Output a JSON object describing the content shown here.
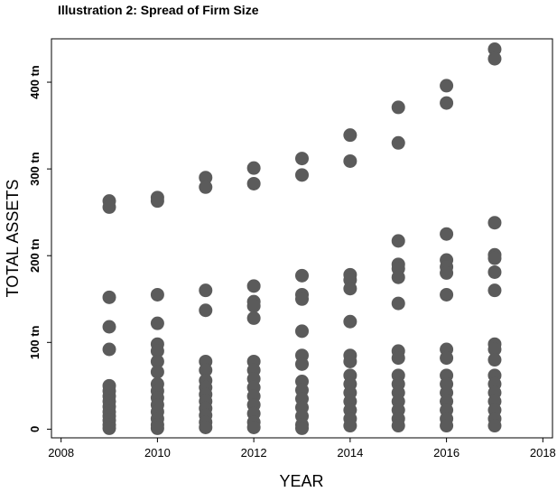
{
  "chart_data": {
    "type": "scatter",
    "title": "Illustration 2: Spread of Firm Size",
    "x_label": "YEAR",
    "y_label": "TOTAL ASSETS",
    "color": "#5b5b5b",
    "xlim": [
      2007.8,
      2018.2
    ],
    "ylim": [
      -10,
      450
    ],
    "xticks": [
      2008,
      2010,
      2012,
      2014,
      2016,
      2018
    ],
    "yticks": [
      0,
      {
        "value": 100,
        "label": "100 tn"
      },
      {
        "value": 200,
        "label": "200 tn"
      },
      {
        "value": 300,
        "label": "300 tn"
      },
      {
        "value": 400,
        "label": "400 tn"
      }
    ],
    "x": [
      2009,
      2009,
      2009,
      2009,
      2009,
      2009,
      2009,
      2009,
      2009,
      2009,
      2009,
      2009,
      2009,
      2009,
      2009,
      2010,
      2010,
      2010,
      2010,
      2010,
      2010,
      2010,
      2010,
      2010,
      2010,
      2010,
      2010,
      2010,
      2010,
      2010,
      2010,
      2011,
      2011,
      2011,
      2011,
      2011,
      2011,
      2011,
      2011,
      2011,
      2011,
      2011,
      2011,
      2011,
      2011,
      2012,
      2012,
      2012,
      2012,
      2012,
      2012,
      2012,
      2012,
      2012,
      2012,
      2012,
      2012,
      2012,
      2012,
      2012,
      2013,
      2013,
      2013,
      2013,
      2013,
      2013,
      2013,
      2013,
      2013,
      2013,
      2013,
      2013,
      2013,
      2013,
      2013,
      2014,
      2014,
      2014,
      2014,
      2014,
      2014,
      2014,
      2014,
      2014,
      2014,
      2014,
      2014,
      2014,
      2014,
      2014,
      2015,
      2015,
      2015,
      2015,
      2015,
      2015,
      2015,
      2015,
      2015,
      2015,
      2015,
      2015,
      2015,
      2015,
      2015,
      2015,
      2016,
      2016,
      2016,
      2016,
      2016,
      2016,
      2016,
      2016,
      2016,
      2016,
      2016,
      2016,
      2016,
      2016,
      2016,
      2016,
      2017,
      2017,
      2017,
      2017,
      2017,
      2017,
      2017,
      2017,
      2017,
      2017,
      2017,
      2017,
      2017,
      2017,
      2017,
      2017,
      2017
    ],
    "values": [
      263,
      256,
      152,
      118,
      92,
      50,
      44,
      38,
      32,
      26,
      20,
      15,
      10,
      5,
      1,
      267,
      263,
      155,
      122,
      98,
      90,
      78,
      66,
      52,
      44,
      36,
      28,
      20,
      12,
      5,
      1,
      290,
      279,
      160,
      137,
      78,
      68,
      56,
      48,
      40,
      32,
      24,
      16,
      8,
      2,
      301,
      283,
      165,
      147,
      142,
      128,
      78,
      68,
      58,
      48,
      38,
      28,
      18,
      8,
      2,
      312,
      293,
      177,
      155,
      150,
      113,
      85,
      75,
      55,
      45,
      35,
      25,
      15,
      5,
      1,
      339,
      309,
      178,
      172,
      162,
      124,
      85,
      78,
      62,
      52,
      42,
      32,
      22,
      12,
      4,
      371,
      330,
      217,
      190,
      185,
      175,
      145,
      90,
      82,
      62,
      52,
      42,
      32,
      22,
      12,
      4,
      396,
      376,
      225,
      195,
      187,
      180,
      155,
      92,
      82,
      62,
      52,
      42,
      32,
      22,
      12,
      4,
      438,
      427,
      238,
      201,
      197,
      181,
      160,
      98,
      92,
      80,
      62,
      52,
      42,
      32,
      22,
      12,
      4
    ]
  }
}
